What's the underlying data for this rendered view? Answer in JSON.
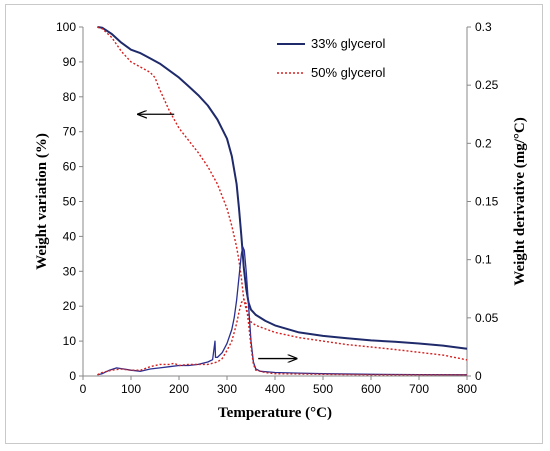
{
  "chart_data": {
    "type": "line",
    "xlabel": "Temperature (°C)",
    "ylabel_left": "Weight variation (%)",
    "ylabel_right": "Weight derivative (mg/°C)",
    "xlim": [
      0,
      800
    ],
    "ylim_left": [
      0,
      100
    ],
    "ylim_right": [
      0,
      0.3
    ],
    "x_ticks": [
      "0",
      "100",
      "200",
      "300",
      "400",
      "500",
      "600",
      "700",
      "800"
    ],
    "y_left_ticks": [
      "0",
      "10",
      "20",
      "30",
      "40",
      "50",
      "60",
      "70",
      "80",
      "90",
      "100"
    ],
    "y_right_ticks": [
      "0",
      "0.05",
      "0.1",
      "0.15",
      "0.2",
      "0.25",
      "0.3"
    ],
    "legend_position": "top-right",
    "grid": false,
    "series": [
      {
        "name": "33% glycerol",
        "kind": "weight",
        "axis": "left",
        "color": "#1f2a6b",
        "style": "solid",
        "points": [
          [
            30,
            100
          ],
          [
            40,
            99.8
          ],
          [
            60,
            98
          ],
          [
            80,
            95.5
          ],
          [
            100,
            93.5
          ],
          [
            120,
            92.5
          ],
          [
            140,
            91
          ],
          [
            160,
            89.5
          ],
          [
            180,
            87.5
          ],
          [
            200,
            85.5
          ],
          [
            220,
            83
          ],
          [
            240,
            80.5
          ],
          [
            260,
            77.5
          ],
          [
            280,
            73.5
          ],
          [
            300,
            68
          ],
          [
            310,
            63
          ],
          [
            320,
            55
          ],
          [
            325,
            48
          ],
          [
            330,
            40
          ],
          [
            335,
            31
          ],
          [
            340,
            25
          ],
          [
            345,
            21
          ],
          [
            350,
            19
          ],
          [
            360,
            17.5
          ],
          [
            380,
            15.8
          ],
          [
            400,
            14.5
          ],
          [
            450,
            12.5
          ],
          [
            500,
            11.5
          ],
          [
            550,
            10.8
          ],
          [
            600,
            10.2
          ],
          [
            650,
            9.8
          ],
          [
            700,
            9.3
          ],
          [
            750,
            8.7
          ],
          [
            800,
            7.8
          ]
        ]
      },
      {
        "name": "50% glycerol",
        "kind": "weight",
        "axis": "left",
        "color": "#d62020",
        "style": "dotted",
        "points": [
          [
            30,
            100
          ],
          [
            40,
            99.5
          ],
          [
            60,
            97
          ],
          [
            80,
            93
          ],
          [
            100,
            90
          ],
          [
            120,
            88.5
          ],
          [
            140,
            87
          ],
          [
            150,
            85.5
          ],
          [
            160,
            82
          ],
          [
            180,
            76
          ],
          [
            200,
            71
          ],
          [
            220,
            67.5
          ],
          [
            240,
            64
          ],
          [
            260,
            60
          ],
          [
            280,
            55
          ],
          [
            300,
            48
          ],
          [
            310,
            43
          ],
          [
            320,
            37
          ],
          [
            325,
            33
          ],
          [
            330,
            28
          ],
          [
            335,
            22
          ],
          [
            340,
            19
          ],
          [
            345,
            17
          ],
          [
            350,
            15.5
          ],
          [
            360,
            14.5
          ],
          [
            380,
            13.5
          ],
          [
            400,
            12.5
          ],
          [
            450,
            11
          ],
          [
            500,
            10
          ],
          [
            550,
            9
          ],
          [
            600,
            8.3
          ],
          [
            650,
            7.6
          ],
          [
            700,
            6.8
          ],
          [
            750,
            6
          ],
          [
            800,
            4.6
          ]
        ]
      },
      {
        "name": "33% glycerol",
        "kind": "derivative",
        "axis": "right",
        "color": "#2a2f8f",
        "style": "solid",
        "points": [
          [
            30,
            0.001
          ],
          [
            40,
            0.002
          ],
          [
            55,
            0.005
          ],
          [
            70,
            0.007
          ],
          [
            85,
            0.006
          ],
          [
            100,
            0.005
          ],
          [
            120,
            0.004
          ],
          [
            140,
            0.006
          ],
          [
            160,
            0.007
          ],
          [
            180,
            0.008
          ],
          [
            200,
            0.009
          ],
          [
            220,
            0.009
          ],
          [
            240,
            0.01
          ],
          [
            260,
            0.012
          ],
          [
            270,
            0.014
          ],
          [
            275,
            0.03
          ],
          [
            276,
            0.016
          ],
          [
            280,
            0.016
          ],
          [
            290,
            0.02
          ],
          [
            300,
            0.028
          ],
          [
            310,
            0.04
          ],
          [
            315,
            0.05
          ],
          [
            320,
            0.065
          ],
          [
            325,
            0.085
          ],
          [
            330,
            0.105
          ],
          [
            333,
            0.111
          ],
          [
            336,
            0.108
          ],
          [
            340,
            0.09
          ],
          [
            345,
            0.06
          ],
          [
            350,
            0.03
          ],
          [
            355,
            0.012
          ],
          [
            360,
            0.006
          ],
          [
            370,
            0.004
          ],
          [
            400,
            0.003
          ],
          [
            450,
            0.0025
          ],
          [
            500,
            0.002
          ],
          [
            600,
            0.0015
          ],
          [
            700,
            0.0012
          ],
          [
            800,
            0.001
          ]
        ]
      },
      {
        "name": "50% glycerol",
        "kind": "derivative",
        "axis": "right",
        "color": "#d62020",
        "style": "dotted",
        "points": [
          [
            30,
            0.001
          ],
          [
            40,
            0.003
          ],
          [
            60,
            0.005
          ],
          [
            80,
            0.006
          ],
          [
            100,
            0.005
          ],
          [
            120,
            0.005
          ],
          [
            140,
            0.008
          ],
          [
            160,
            0.01
          ],
          [
            180,
            0.01
          ],
          [
            190,
            0.011
          ],
          [
            200,
            0.009
          ],
          [
            220,
            0.01
          ],
          [
            240,
            0.01
          ],
          [
            260,
            0.01
          ],
          [
            280,
            0.012
          ],
          [
            290,
            0.015
          ],
          [
            300,
            0.022
          ],
          [
            310,
            0.03
          ],
          [
            320,
            0.045
          ],
          [
            325,
            0.055
          ],
          [
            330,
            0.063
          ],
          [
            335,
            0.066
          ],
          [
            340,
            0.062
          ],
          [
            345,
            0.045
          ],
          [
            350,
            0.025
          ],
          [
            355,
            0.01
          ],
          [
            360,
            0.005
          ],
          [
            380,
            0.003
          ],
          [
            400,
            0.002
          ],
          [
            500,
            0.0015
          ],
          [
            600,
            0.001
          ],
          [
            700,
            0.001
          ],
          [
            800,
            0.001
          ]
        ]
      }
    ],
    "annotations": [
      {
        "name": "left-arrow",
        "direction": "left",
        "x_from": 190,
        "x_to": 115,
        "y": 75,
        "axis": "left"
      },
      {
        "name": "right-arrow",
        "direction": "right",
        "x_from": 365,
        "x_to": 445,
        "y": 5,
        "axis": "left"
      }
    ]
  }
}
